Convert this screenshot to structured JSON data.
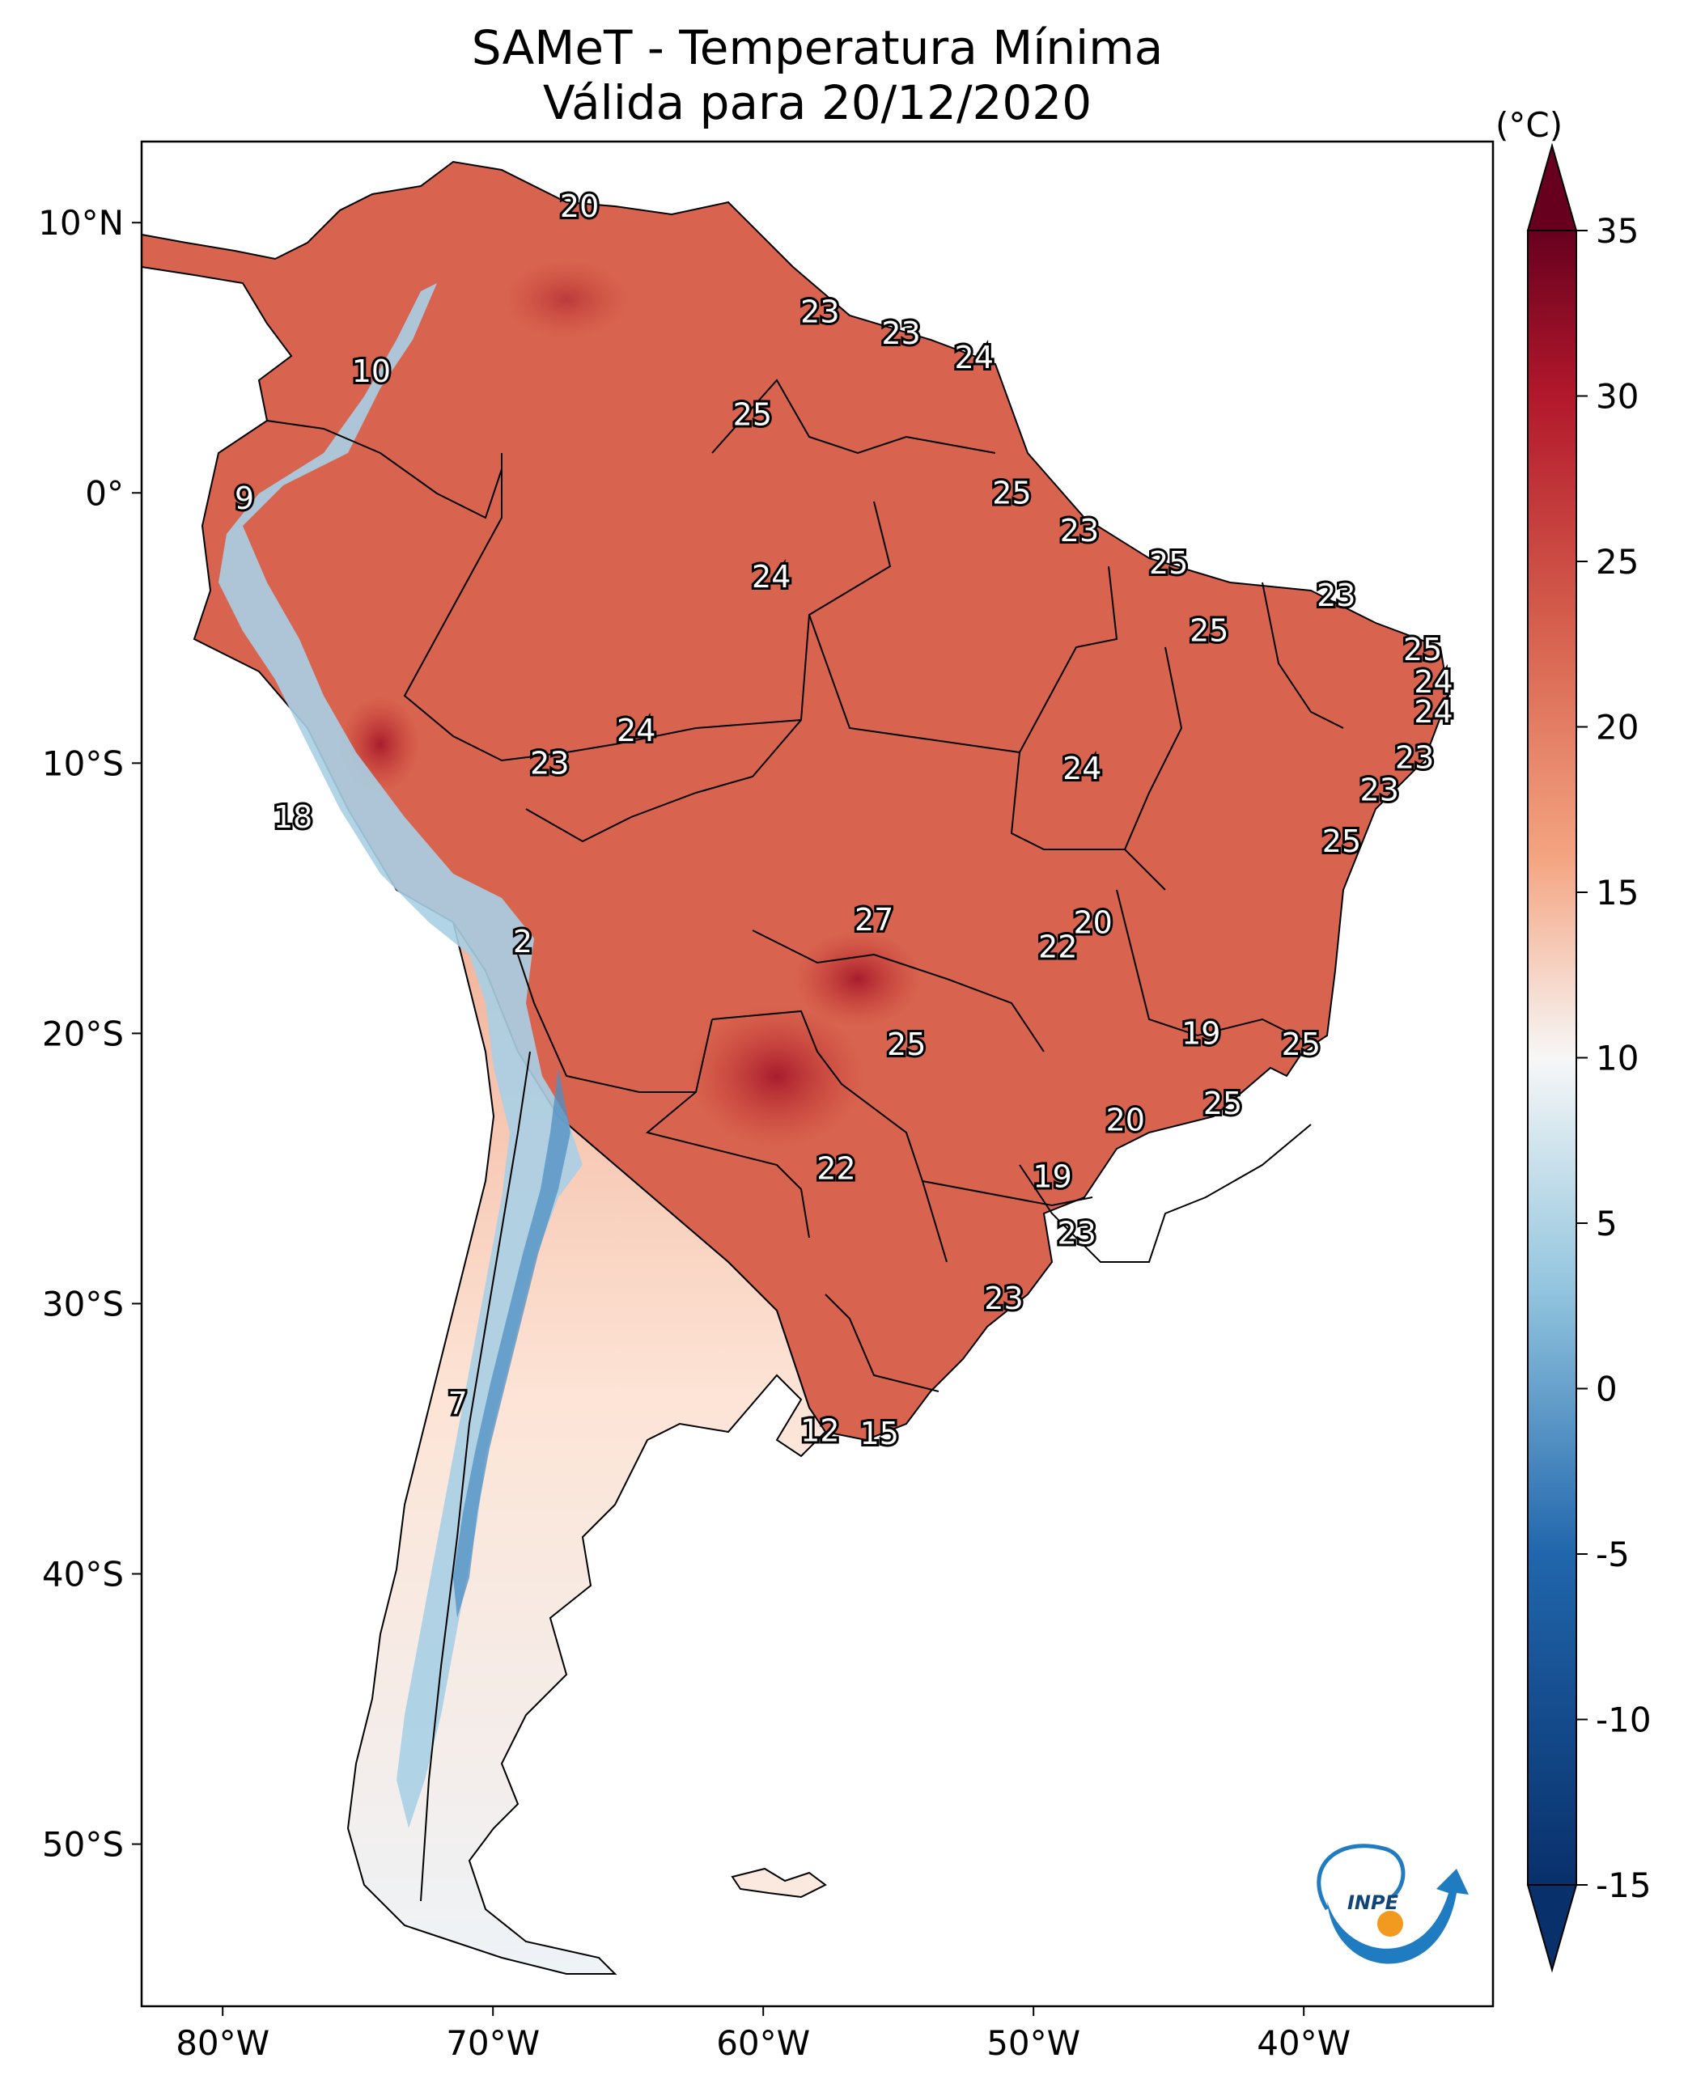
{
  "title": {
    "line1": "SAMeT - Temperatura Mínima",
    "line2": "Válida para 20/12/2020"
  },
  "colorbar": {
    "unit": "(°C)",
    "min": -15,
    "max": 35,
    "extend": "both",
    "ticks": [
      {
        "value": 35,
        "label": "35"
      },
      {
        "value": 30,
        "label": "30"
      },
      {
        "value": 25,
        "label": "25"
      },
      {
        "value": 20,
        "label": "20"
      },
      {
        "value": 15,
        "label": "15"
      },
      {
        "value": 10,
        "label": "10"
      },
      {
        "value": 5,
        "label": "5"
      },
      {
        "value": 0,
        "label": "0"
      },
      {
        "value": -5,
        "label": "-5"
      },
      {
        "value": -10,
        "label": "-10"
      },
      {
        "value": -15,
        "label": "-15"
      }
    ],
    "colors": {
      "low": "#08306b",
      "cold": "#2166ac",
      "cool": "#92c5de",
      "neutral": "#f7f7f7",
      "mild": "#f4a582",
      "warm": "#d6604d",
      "hot": "#b2182b",
      "high": "#67001f"
    }
  },
  "map": {
    "lon_range": [
      -83,
      -33
    ],
    "lat_range": [
      -56,
      13
    ],
    "lon_ticks": [
      {
        "value": -80,
        "label": "80°W"
      },
      {
        "value": -70,
        "label": "70°W"
      },
      {
        "value": -60,
        "label": "60°W"
      },
      {
        "value": -50,
        "label": "50°W"
      },
      {
        "value": -40,
        "label": "40°W"
      }
    ],
    "lat_ticks": [
      {
        "value": 10,
        "label": "10°N"
      },
      {
        "value": 0,
        "label": "0°"
      },
      {
        "value": -10,
        "label": "10°S"
      },
      {
        "value": -20,
        "label": "20°S"
      },
      {
        "value": -30,
        "label": "30°S"
      },
      {
        "value": -40,
        "label": "40°S"
      },
      {
        "value": -50,
        "label": "50°S"
      }
    ],
    "point_labels": [
      {
        "text": "20",
        "lon": -66.8,
        "lat": 10.6
      },
      {
        "text": "23",
        "lon": -57.9,
        "lat": 6.7
      },
      {
        "text": "23",
        "lon": -54.9,
        "lat": 5.9
      },
      {
        "text": "24",
        "lon": -52.2,
        "lat": 5.0
      },
      {
        "text": "10",
        "lon": -74.5,
        "lat": 4.5
      },
      {
        "text": "25",
        "lon": -60.4,
        "lat": 2.9
      },
      {
        "text": "9",
        "lon": -79.2,
        "lat": -0.2
      },
      {
        "text": "25",
        "lon": -50.8,
        "lat": 0.0
      },
      {
        "text": "23",
        "lon": -48.3,
        "lat": -1.4
      },
      {
        "text": "24",
        "lon": -59.7,
        "lat": -3.1
      },
      {
        "text": "25",
        "lon": -45.0,
        "lat": -2.6
      },
      {
        "text": "23",
        "lon": -38.8,
        "lat": -3.8
      },
      {
        "text": "25",
        "lon": -43.5,
        "lat": -5.1
      },
      {
        "text": "25",
        "lon": -35.6,
        "lat": -5.8
      },
      {
        "text": "24",
        "lon": -35.2,
        "lat": -7.0
      },
      {
        "text": "24",
        "lon": -35.2,
        "lat": -8.1
      },
      {
        "text": "24",
        "lon": -64.7,
        "lat": -8.8
      },
      {
        "text": "23",
        "lon": -67.9,
        "lat": -10.0
      },
      {
        "text": "24",
        "lon": -48.2,
        "lat": -10.2
      },
      {
        "text": "23",
        "lon": -35.9,
        "lat": -9.8
      },
      {
        "text": "23",
        "lon": -37.2,
        "lat": -11.0
      },
      {
        "text": "18",
        "lon": -77.4,
        "lat": -12.0
      },
      {
        "text": "25",
        "lon": -38.6,
        "lat": -12.9
      },
      {
        "text": "27",
        "lon": -55.9,
        "lat": -15.8
      },
      {
        "text": "20",
        "lon": -47.8,
        "lat": -15.9
      },
      {
        "text": "22",
        "lon": -49.1,
        "lat": -16.8
      },
      {
        "text": "2",
        "lon": -68.9,
        "lat": -16.6
      },
      {
        "text": "19",
        "lon": -43.8,
        "lat": -20.0
      },
      {
        "text": "25",
        "lon": -40.1,
        "lat": -20.4
      },
      {
        "text": "25",
        "lon": -54.7,
        "lat": -20.4
      },
      {
        "text": "25",
        "lon": -43.0,
        "lat": -22.6
      },
      {
        "text": "20",
        "lon": -46.6,
        "lat": -23.2
      },
      {
        "text": "22",
        "lon": -57.3,
        "lat": -25.0
      },
      {
        "text": "19",
        "lon": -49.3,
        "lat": -25.3
      },
      {
        "text": "23",
        "lon": -48.4,
        "lat": -27.4
      },
      {
        "text": "23",
        "lon": -51.1,
        "lat": -29.8
      },
      {
        "text": "7",
        "lon": -71.3,
        "lat": -33.7
      },
      {
        "text": "12",
        "lon": -57.9,
        "lat": -34.7
      },
      {
        "text": "15",
        "lon": -55.7,
        "lat": -34.8
      }
    ]
  },
  "logo": {
    "text": "INPE"
  }
}
